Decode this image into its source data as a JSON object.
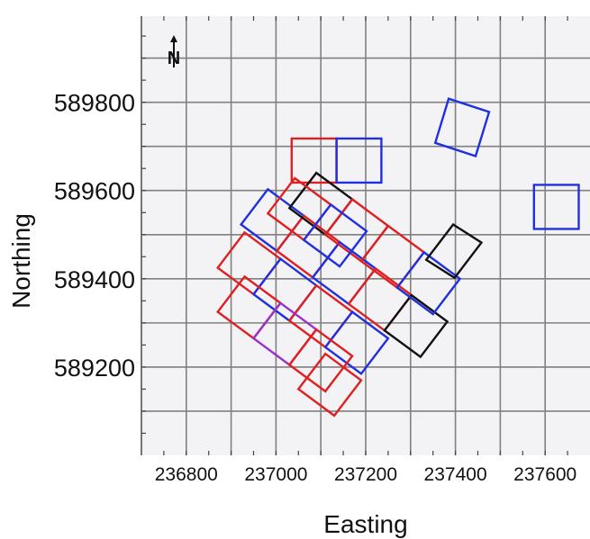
{
  "chart_data": {
    "type": "scatter",
    "title": "",
    "xlabel": "Easting",
    "ylabel": "Northing",
    "xlim": [
      236700,
      237700
    ],
    "ylim": [
      589000,
      589995
    ],
    "x_ticks": [
      236800,
      237000,
      237200,
      237400,
      237600
    ],
    "y_ticks": [
      589200,
      589400,
      589600,
      589800
    ],
    "x_tick_labels": [
      "236800",
      "237000",
      "237200",
      "237400",
      "237600"
    ],
    "y_tick_labels": [
      "589200",
      "589400",
      "589600",
      "589800"
    ],
    "grid": true,
    "north_arrow": "N",
    "colors": {
      "red": "#e02020",
      "blue": "#2030e0",
      "black": "#111111",
      "purple": "#9a30c8",
      "grid": "#808080",
      "background": "#f3f3f6"
    },
    "footprints": [
      {
        "color": "red",
        "corners": [
          [
            237035,
            589718
          ],
          [
            237135,
            589718
          ],
          [
            237135,
            589618
          ],
          [
            237035,
            589618
          ]
        ]
      },
      {
        "color": "blue",
        "corners": [
          [
            237135,
            589718
          ],
          [
            237235,
            589718
          ],
          [
            237235,
            589618
          ],
          [
            237135,
            589618
          ]
        ]
      },
      {
        "color": "blue",
        "corners": [
          [
            237385,
            589808
          ],
          [
            237475,
            589778
          ],
          [
            237445,
            589678
          ],
          [
            237355,
            589708
          ]
        ]
      },
      {
        "color": "blue",
        "corners": [
          [
            237575,
            589613
          ],
          [
            237675,
            589613
          ],
          [
            237675,
            589513
          ],
          [
            237575,
            589513
          ]
        ]
      },
      {
        "color": "blue",
        "corners": [
          [
            236982,
            589603
          ],
          [
            237062,
            589543
          ],
          [
            237002,
            589463
          ],
          [
            236922,
            589523
          ]
        ]
      },
      {
        "color": "red",
        "corners": [
          [
            237062,
            589543
          ],
          [
            237142,
            589483
          ],
          [
            237082,
            589403
          ],
          [
            237002,
            589463
          ]
        ]
      },
      {
        "color": "blue",
        "corners": [
          [
            237142,
            589483
          ],
          [
            237222,
            589423
          ],
          [
            237162,
            589343
          ],
          [
            237082,
            589403
          ]
        ]
      },
      {
        "color": "red",
        "corners": [
          [
            237222,
            589423
          ],
          [
            237302,
            589363
          ],
          [
            237242,
            589283
          ],
          [
            237162,
            589343
          ]
        ]
      },
      {
        "color": "black",
        "corners": [
          [
            237302,
            589363
          ],
          [
            237382,
            589303
          ],
          [
            237322,
            589223
          ],
          [
            237242,
            589283
          ]
        ]
      },
      {
        "color": "black",
        "corners": [
          [
            237090,
            589640
          ],
          [
            237170,
            589580
          ],
          [
            237110,
            589500
          ],
          [
            237030,
            589560
          ]
        ]
      },
      {
        "color": "red",
        "corners": [
          [
            237170,
            589580
          ],
          [
            237250,
            589520
          ],
          [
            237190,
            589440
          ],
          [
            237110,
            589500
          ]
        ]
      },
      {
        "color": "red",
        "corners": [
          [
            237250,
            589520
          ],
          [
            237330,
            589460
          ],
          [
            237270,
            589380
          ],
          [
            237190,
            589440
          ]
        ]
      },
      {
        "color": "blue",
        "corners": [
          [
            237330,
            589460
          ],
          [
            237410,
            589400
          ],
          [
            237350,
            589320
          ],
          [
            237270,
            589380
          ]
        ]
      },
      {
        "color": "black",
        "corners": [
          [
            237395,
            589523
          ],
          [
            237458,
            589482
          ],
          [
            237398,
            589402
          ],
          [
            237335,
            589443
          ]
        ]
      },
      {
        "color": "red",
        "corners": [
          [
            237042,
            589628
          ],
          [
            237122,
            589568
          ],
          [
            237062,
            589488
          ],
          [
            236982,
            589548
          ]
        ]
      },
      {
        "color": "blue",
        "corners": [
          [
            237122,
            589568
          ],
          [
            237202,
            589508
          ],
          [
            237142,
            589428
          ],
          [
            237062,
            589488
          ]
        ]
      },
      {
        "color": "red",
        "corners": [
          [
            236930,
            589505
          ],
          [
            237010,
            589445
          ],
          [
            236950,
            589365
          ],
          [
            236870,
            589425
          ]
        ]
      },
      {
        "color": "blue",
        "corners": [
          [
            237010,
            589445
          ],
          [
            237090,
            589385
          ],
          [
            237030,
            589305
          ],
          [
            236950,
            589365
          ]
        ]
      },
      {
        "color": "red",
        "corners": [
          [
            237090,
            589385
          ],
          [
            237170,
            589325
          ],
          [
            237110,
            589245
          ],
          [
            237030,
            589305
          ]
        ]
      },
      {
        "color": "blue",
        "corners": [
          [
            237170,
            589325
          ],
          [
            237250,
            589265
          ],
          [
            237190,
            589185
          ],
          [
            237110,
            589245
          ]
        ]
      },
      {
        "color": "red",
        "corners": [
          [
            236930,
            589405
          ],
          [
            237010,
            589345
          ],
          [
            236950,
            589265
          ],
          [
            236870,
            589325
          ]
        ]
      },
      {
        "color": "purple",
        "corners": [
          [
            237010,
            589345
          ],
          [
            237090,
            589285
          ],
          [
            237030,
            589205
          ],
          [
            236950,
            589265
          ]
        ]
      },
      {
        "color": "red",
        "corners": [
          [
            237090,
            589285
          ],
          [
            237170,
            589225
          ],
          [
            237110,
            589145
          ],
          [
            237030,
            589205
          ]
        ]
      },
      {
        "color": "red",
        "corners": [
          [
            237110,
            589230
          ],
          [
            237190,
            589170
          ],
          [
            237130,
            589090
          ],
          [
            237050,
            589150
          ]
        ]
      }
    ]
  }
}
